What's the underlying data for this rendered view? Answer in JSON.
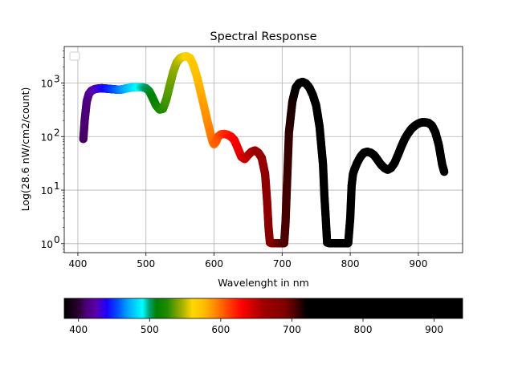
{
  "chart_data": {
    "type": "scatter",
    "title": "Spectral Response",
    "xlabel": "Wavelenght in nm",
    "ylabel": "Log(28.6 nW/cm2/count)",
    "y_scale": "log",
    "xlim": [
      380,
      965
    ],
    "ylim": [
      0.68,
      4800
    ],
    "x_ticks": [
      "400",
      "500",
      "600",
      "700",
      "800",
      "900"
    ],
    "y_ticks": [
      "10",
      "10",
      "10",
      "10"
    ],
    "y_tick_exponents": [
      "0",
      "1",
      "2",
      "3"
    ],
    "grid": true,
    "legend": "top-left (empty)",
    "series": [
      {
        "x": [
          408,
          410,
          413,
          416,
          420,
          425,
          430,
          435,
          440,
          445,
          450,
          455,
          460,
          465,
          470,
          475,
          480,
          485,
          490,
          495,
          500,
          505,
          510,
          515,
          520,
          525,
          530,
          535,
          540,
          545,
          550,
          555,
          560,
          565,
          570,
          575,
          580,
          585,
          590,
          595,
          598,
          600,
          603,
          606,
          610,
          615,
          620,
          625,
          630,
          635,
          640,
          645,
          650,
          655,
          660,
          665,
          670,
          675,
          678,
          680,
          682,
          685,
          690,
          695,
          700,
          703,
          705,
          707,
          710,
          715,
          720,
          725,
          730,
          735,
          740,
          745,
          750,
          755,
          760,
          762,
          764,
          766,
          770,
          780,
          790,
          797,
          800,
          802,
          804,
          806,
          810,
          815,
          820,
          825,
          830,
          835,
          840,
          845,
          850,
          855,
          860,
          865,
          870,
          875,
          880,
          885,
          890,
          895,
          900,
          905,
          910,
          915,
          920,
          925,
          930,
          935,
          938
        ],
        "y": [
          90,
          200,
          450,
          620,
          720,
          770,
          790,
          800,
          790,
          780,
          770,
          760,
          750,
          760,
          790,
          810,
          830,
          840,
          840,
          830,
          800,
          700,
          520,
          380,
          320,
          330,
          500,
          900,
          1600,
          2400,
          2900,
          3100,
          3150,
          2900,
          2100,
          1300,
          700,
          380,
          200,
          110,
          80,
          72,
          80,
          100,
          110,
          112,
          108,
          100,
          85,
          60,
          42,
          38,
          45,
          52,
          55,
          50,
          40,
          20,
          6,
          2,
          1.05,
          1.02,
          1.02,
          1.02,
          1.02,
          1.02,
          2.5,
          12,
          120,
          450,
          820,
          1000,
          1050,
          980,
          820,
          600,
          380,
          150,
          30,
          8,
          3,
          1.05,
          1.02,
          1.02,
          1.02,
          1.02,
          3,
          12,
          20,
          24,
          32,
          42,
          50,
          52,
          50,
          45,
          37,
          30,
          26,
          24,
          26,
          32,
          45,
          65,
          90,
          115,
          140,
          160,
          175,
          185,
          185,
          180,
          160,
          120,
          70,
          30,
          22
        ],
        "colormap": "spectral wavelength colors (violet 400nm → red 700nm → black beyond)"
      }
    ],
    "colorbar": {
      "range": [
        380,
        940
      ],
      "ticks": [
        "400",
        "500",
        "600",
        "700",
        "800",
        "900"
      ],
      "stops": [
        {
          "nm": 380,
          "color": "#000000"
        },
        {
          "nm": 400,
          "color": "#2a0030"
        },
        {
          "nm": 410,
          "color": "#4a0070"
        },
        {
          "nm": 425,
          "color": "#5a00b0"
        },
        {
          "nm": 440,
          "color": "#1a00ff"
        },
        {
          "nm": 455,
          "color": "#0050ff"
        },
        {
          "nm": 470,
          "color": "#00a8ff"
        },
        {
          "nm": 490,
          "color": "#00ffff"
        },
        {
          "nm": 500,
          "color": "#00a070"
        },
        {
          "nm": 510,
          "color": "#008000"
        },
        {
          "nm": 525,
          "color": "#228b00"
        },
        {
          "nm": 545,
          "color": "#a0b000"
        },
        {
          "nm": 560,
          "color": "#ffd700"
        },
        {
          "nm": 575,
          "color": "#ffc000"
        },
        {
          "nm": 590,
          "color": "#ff9000"
        },
        {
          "nm": 610,
          "color": "#ff4500"
        },
        {
          "nm": 630,
          "color": "#ff0000"
        },
        {
          "nm": 660,
          "color": "#a00000"
        },
        {
          "nm": 690,
          "color": "#800000"
        },
        {
          "nm": 705,
          "color": "#4a0000"
        },
        {
          "nm": 720,
          "color": "#000000"
        },
        {
          "nm": 940,
          "color": "#000000"
        }
      ]
    }
  }
}
